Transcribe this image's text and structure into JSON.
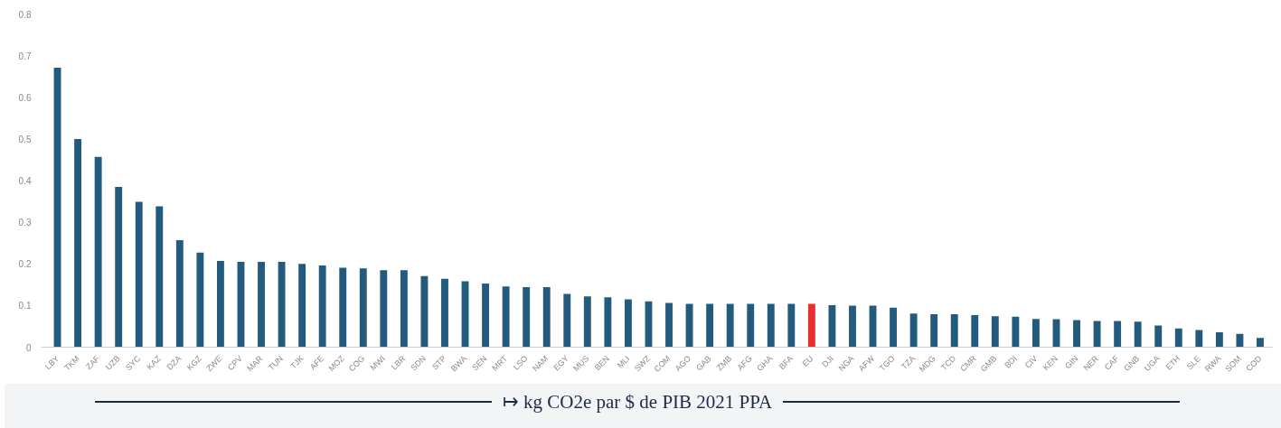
{
  "chart_data": {
    "type": "bar",
    "xlabel": "↦ kg CO2e par $ de PIB 2021 PPA",
    "categories": [
      "LBY",
      "TKM",
      "ZAF",
      "UZB",
      "SYC",
      "KAZ",
      "DZA",
      "KGZ",
      "ZWE",
      "CPV",
      "MAR",
      "TUN",
      "TJK",
      "AFE",
      "MOZ",
      "COG",
      "MWI",
      "LBR",
      "SDN",
      "STP",
      "BWA",
      "SEN",
      "MRT",
      "LSO",
      "NAM",
      "EGY",
      "MUS",
      "BEN",
      "MLI",
      "SWZ",
      "COM",
      "AGO",
      "GAB",
      "ZMB",
      "AFG",
      "GHA",
      "BFA",
      "EU",
      "DJI",
      "NGA",
      "AFW",
      "TGO",
      "TZA",
      "MDG",
      "TCD",
      "CMR",
      "GMB",
      "BDI",
      "CIV",
      "KEN",
      "GIN",
      "NER",
      "CAF",
      "GNB",
      "UGA",
      "ETH",
      "SLE",
      "RWA",
      "SOM",
      "COD"
    ],
    "values": [
      0.671,
      0.5,
      0.457,
      0.385,
      0.349,
      0.338,
      0.257,
      0.227,
      0.207,
      0.205,
      0.205,
      0.205,
      0.2,
      0.196,
      0.191,
      0.189,
      0.185,
      0.185,
      0.171,
      0.164,
      0.158,
      0.153,
      0.146,
      0.144,
      0.144,
      0.128,
      0.122,
      0.12,
      0.115,
      0.11,
      0.106,
      0.104,
      0.104,
      0.104,
      0.104,
      0.104,
      0.104,
      0.104,
      0.101,
      0.1,
      0.1,
      0.095,
      0.081,
      0.079,
      0.079,
      0.077,
      0.074,
      0.073,
      0.068,
      0.067,
      0.065,
      0.063,
      0.063,
      0.061,
      0.052,
      0.045,
      0.041,
      0.036,
      0.032,
      0.022
    ],
    "colors": [
      "#235b7e",
      "#235b7e",
      "#235b7e",
      "#235b7e",
      "#235b7e",
      "#235b7e",
      "#235b7e",
      "#235b7e",
      "#235b7e",
      "#235b7e",
      "#235b7e",
      "#235b7e",
      "#235b7e",
      "#235b7e",
      "#235b7e",
      "#235b7e",
      "#235b7e",
      "#235b7e",
      "#235b7e",
      "#235b7e",
      "#235b7e",
      "#235b7e",
      "#235b7e",
      "#235b7e",
      "#235b7e",
      "#235b7e",
      "#235b7e",
      "#235b7e",
      "#235b7e",
      "#235b7e",
      "#235b7e",
      "#235b7e",
      "#235b7e",
      "#235b7e",
      "#235b7e",
      "#235b7e",
      "#235b7e",
      "#e8302f",
      "#235b7e",
      "#235b7e",
      "#235b7e",
      "#235b7e",
      "#235b7e",
      "#235b7e",
      "#235b7e",
      "#235b7e",
      "#235b7e",
      "#235b7e",
      "#235b7e",
      "#235b7e",
      "#235b7e",
      "#235b7e",
      "#235b7e",
      "#235b7e",
      "#235b7e",
      "#235b7e",
      "#235b7e",
      "#235b7e",
      "#235b7e",
      "#235b7e"
    ],
    "ylim": [
      0,
      0.8
    ],
    "yticks": [
      0,
      0.1,
      0.2,
      0.3,
      0.4,
      0.5,
      0.6,
      0.7,
      0.8
    ],
    "grid": false
  }
}
